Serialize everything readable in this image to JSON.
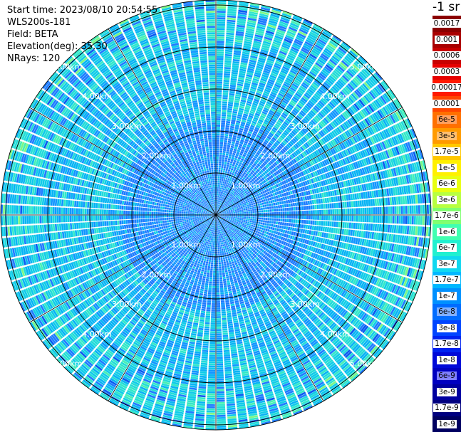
{
  "info": {
    "start_time": "Start time: 2023/08/10 20:54:55",
    "instrument": "WLS200s-181",
    "field": "Field: BETA",
    "elevation": "Elevation(deg): 35.30",
    "nrays": "NRays: 120"
  },
  "range_labels": [
    "1.00km",
    "2.00km",
    "3.00km",
    "4.00km",
    "5.00km"
  ],
  "colorbar": {
    "units": "-1 sr",
    "entries": [
      {
        "label": "0.0017",
        "color": "#8b0000",
        "bg": "#ffffff"
      },
      {
        "label": "0.001",
        "color": "#a80000",
        "bg": "#ffffff"
      },
      {
        "label": "0.0006",
        "color": "#c80000",
        "bg": "#ffffff"
      },
      {
        "label": "0.0003",
        "color": "#e60000",
        "bg": "#ffffff"
      },
      {
        "label": "0.00017",
        "color": "#ff1a00",
        "bg": "#ffffff"
      },
      {
        "label": "0.0001",
        "color": "#ff4500",
        "bg": "#ffffff"
      },
      {
        "label": "6e-5",
        "color": "#ff7000",
        "bg": "#ffa060"
      },
      {
        "label": "3e-5",
        "color": "#ff9a00",
        "bg": "#ffc070"
      },
      {
        "label": "1.7e-5",
        "color": "#ffc800",
        "bg": "#ffffff"
      },
      {
        "label": "1e-5",
        "color": "#fff000",
        "bg": "#ffffff"
      },
      {
        "label": "6e-6",
        "color": "#e8ff10",
        "bg": "#ffffff"
      },
      {
        "label": "3e-6",
        "color": "#b8ff40",
        "bg": "#ffffff"
      },
      {
        "label": "1.7e-6",
        "color": "#80ff70",
        "bg": "#ffffff"
      },
      {
        "label": "1e-6",
        "color": "#40ffb0",
        "bg": "#ffffff"
      },
      {
        "label": "6e-7",
        "color": "#20f0d0",
        "bg": "#ffffff"
      },
      {
        "label": "3e-7",
        "color": "#10d8f0",
        "bg": "#ffffff"
      },
      {
        "label": "1.7e-7",
        "color": "#00b8ff",
        "bg": "#ffffff"
      },
      {
        "label": "1e-7",
        "color": "#0090ff",
        "bg": "#ffffff"
      },
      {
        "label": "6e-8",
        "color": "#006cff",
        "bg": "#80b0ff"
      },
      {
        "label": "3e-8",
        "color": "#0044ff",
        "bg": "#ffffff"
      },
      {
        "label": "1.7e-8",
        "color": "#0022f0",
        "bg": "#ffffff"
      },
      {
        "label": "1e-8",
        "color": "#0008d8",
        "bg": "#ffffff"
      },
      {
        "label": "6e-9",
        "color": "#0000c0",
        "bg": "#8080ff"
      },
      {
        "label": "3e-9",
        "color": "#0000a0",
        "bg": "#ffffff"
      },
      {
        "label": "1.7e-9",
        "color": "#000080",
        "bg": "#ffffff"
      },
      {
        "label": "1e-9",
        "color": "#000060",
        "bg": "#ffffff"
      }
    ]
  }
}
